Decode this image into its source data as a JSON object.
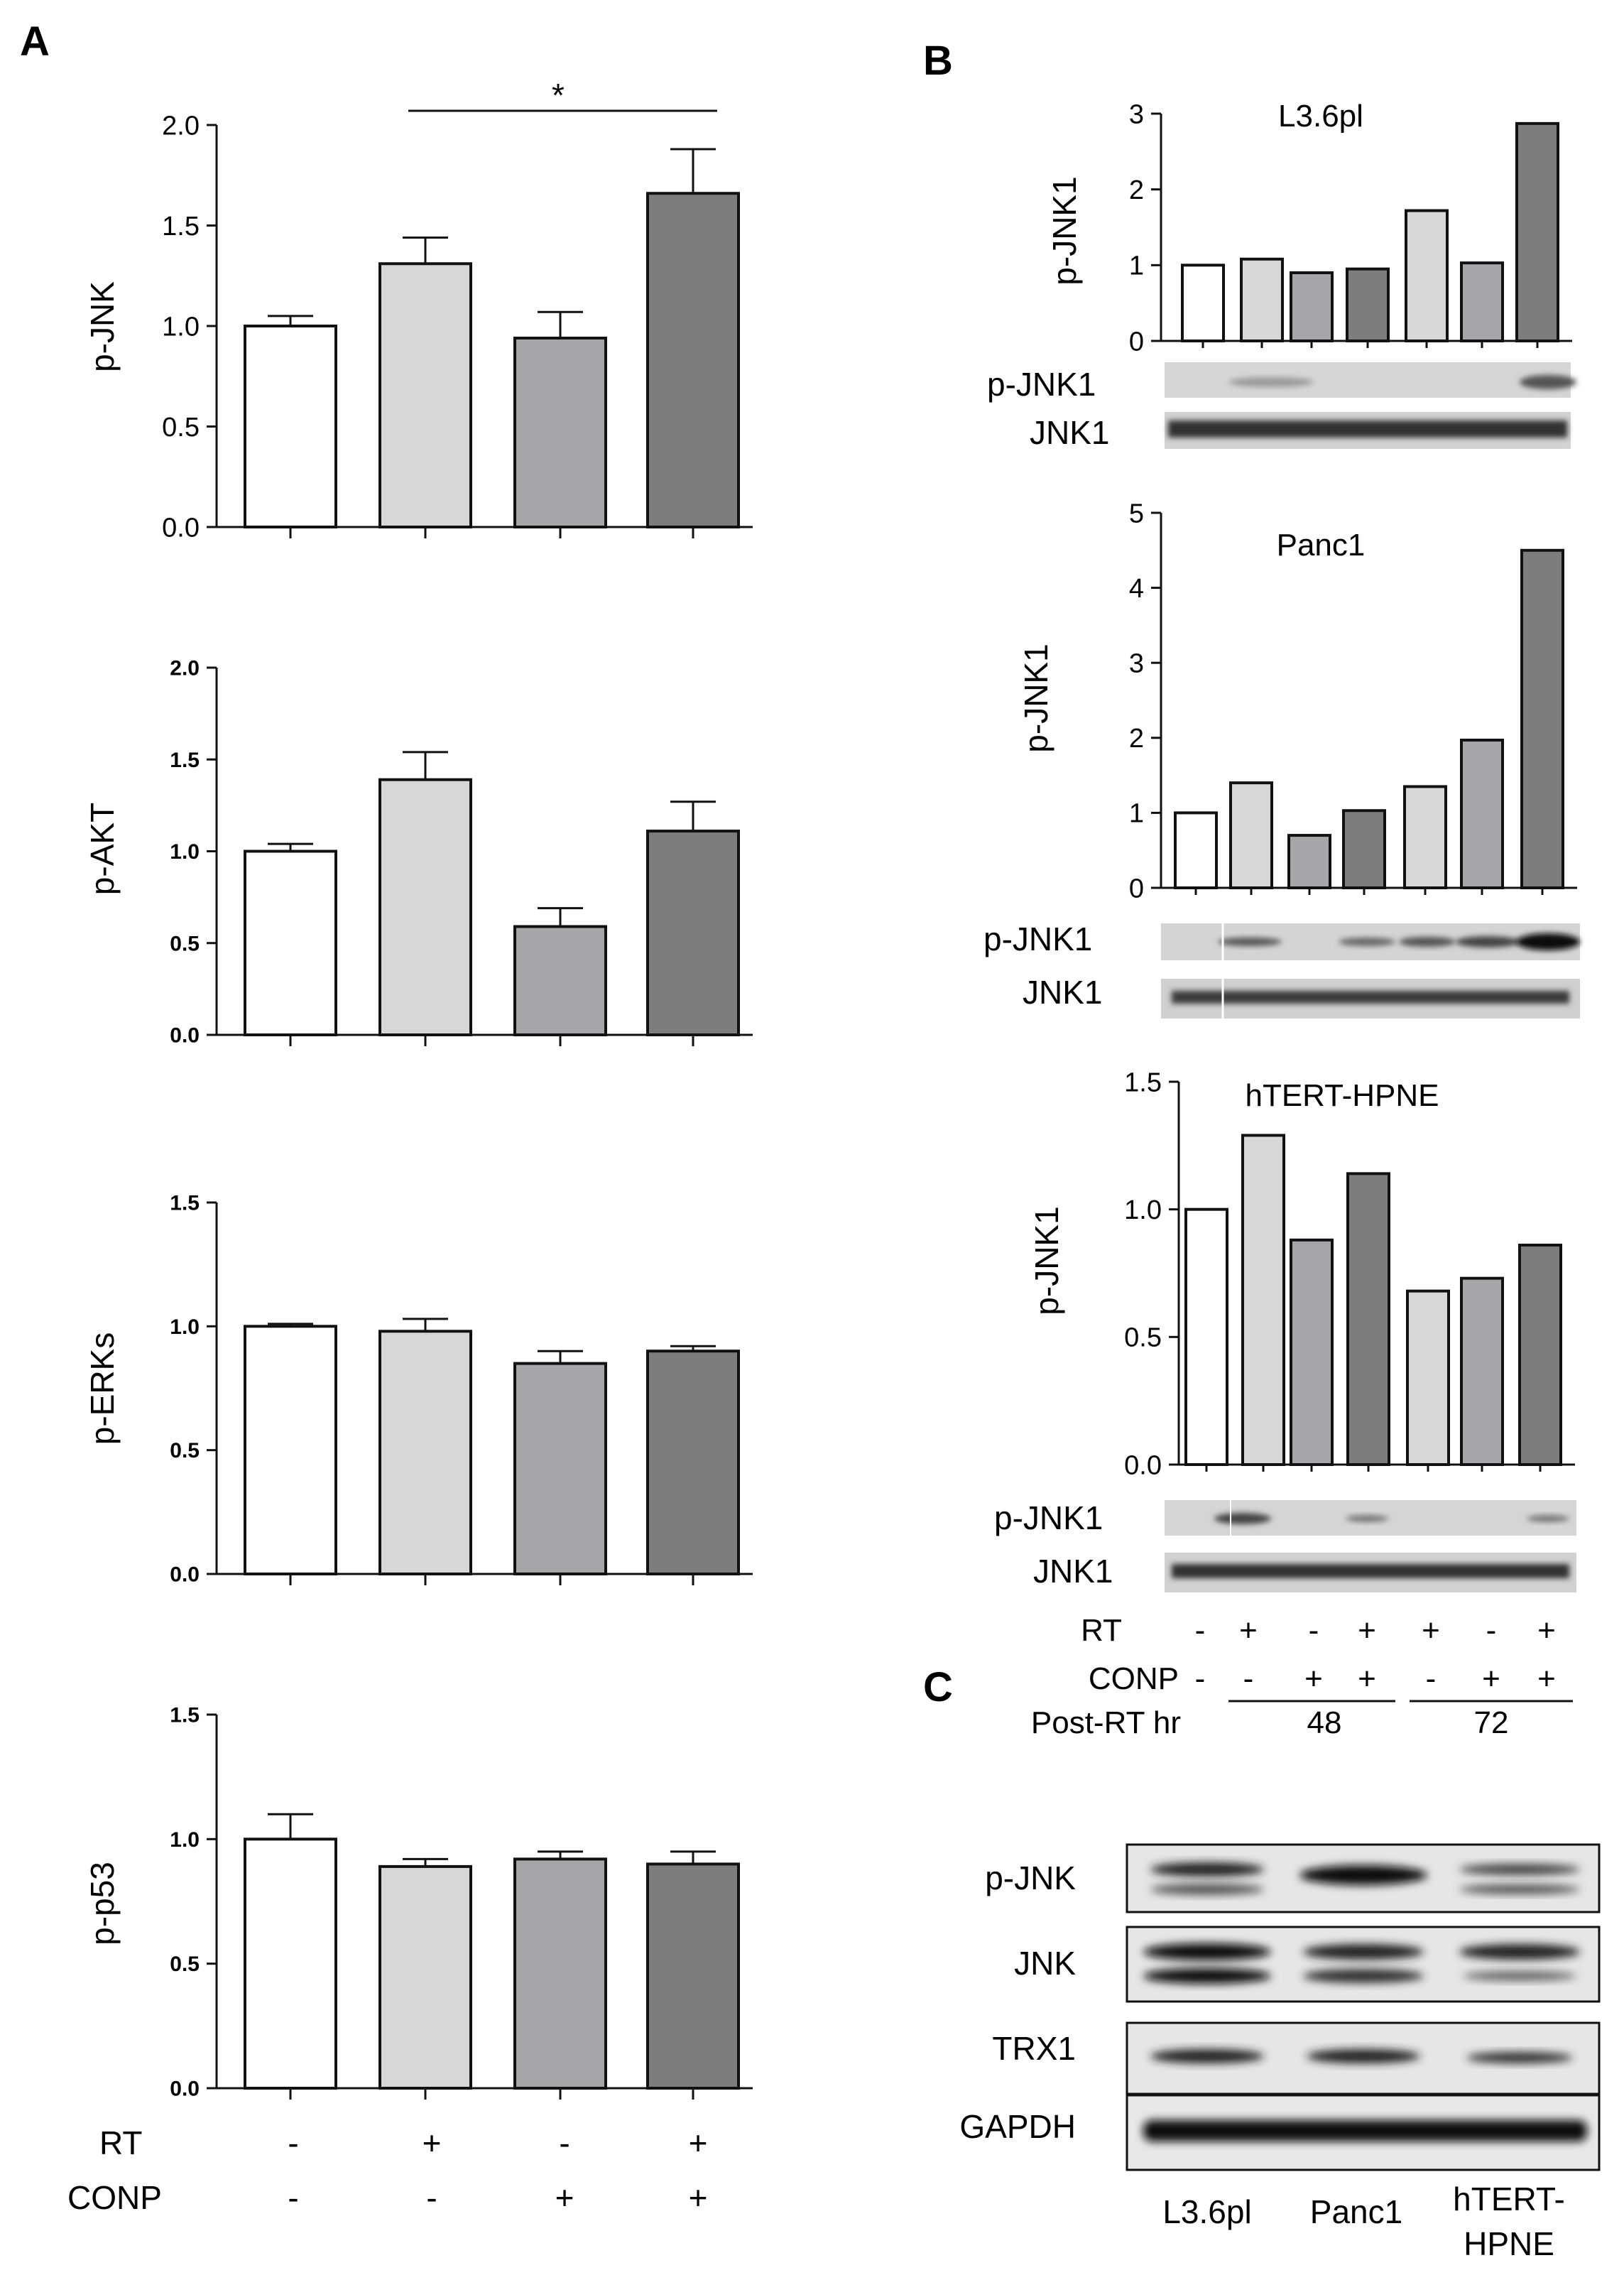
{
  "chart_data": [
    {
      "type": "bar",
      "panel": "A",
      "ylabel": "p-JNK",
      "ylim": [
        0,
        2.0
      ],
      "yticks": [
        "0.0",
        "0.5",
        "1.0",
        "1.5",
        "2.0"
      ],
      "values": [
        1.0,
        1.31,
        0.94,
        1.66
      ],
      "errors": [
        0.05,
        0.13,
        0.13,
        0.22
      ],
      "colors": [
        "#ffffff",
        "#d7d7d7",
        "#a5a5aa",
        "#7d7d7d"
      ],
      "annotation": "*"
    },
    {
      "type": "bar",
      "panel": "A",
      "ylabel": "p-AKT",
      "ylim": [
        0,
        2.0
      ],
      "yticks": [
        "0.0",
        "0.5",
        "1.0",
        "1.5",
        "2.0"
      ],
      "values": [
        1.0,
        1.39,
        0.59,
        1.11
      ],
      "errors": [
        0.04,
        0.15,
        0.1,
        0.16
      ],
      "colors": [
        "#ffffff",
        "#d7d7d7",
        "#a5a5aa",
        "#7d7d7d"
      ]
    },
    {
      "type": "bar",
      "panel": "A",
      "ylabel": "p-ERKs",
      "ylim": [
        0,
        1.5
      ],
      "yticks": [
        "0.0",
        "0.5",
        "1.0",
        "1.5"
      ],
      "values": [
        1.0,
        0.98,
        0.85,
        0.9
      ],
      "errors": [
        0.01,
        0.05,
        0.05,
        0.02
      ],
      "colors": [
        "#ffffff",
        "#d7d7d7",
        "#a5a5aa",
        "#7d7d7d"
      ]
    },
    {
      "type": "bar",
      "panel": "A",
      "ylabel": "p-p53",
      "ylim": [
        0,
        1.5
      ],
      "yticks": [
        "0.0",
        "0.5",
        "1.0",
        "1.5"
      ],
      "values": [
        1.0,
        0.89,
        0.92,
        0.9
      ],
      "errors": [
        0.1,
        0.03,
        0.03,
        0.05
      ],
      "colors": [
        "#ffffff",
        "#d7d7d7",
        "#a5a5aa",
        "#7d7d7d"
      ]
    },
    {
      "type": "bar",
      "panel": "B",
      "title": "L3.6pl",
      "ylabel": "p-JNK1",
      "ylim": [
        0,
        3
      ],
      "yticks": [
        "0",
        "1",
        "2",
        "3"
      ],
      "values": [
        1.0,
        1.08,
        0.9,
        0.95,
        1.72,
        1.03,
        2.87
      ],
      "colors": [
        "#ffffff",
        "#d7d7d7",
        "#a5a5aa",
        "#7d7d7d",
        "#d7d7d7",
        "#a5a5aa",
        "#7d7d7d"
      ]
    },
    {
      "type": "bar",
      "panel": "B",
      "title": "Panc1",
      "ylabel": "p-JNK1",
      "ylim": [
        0,
        5
      ],
      "yticks": [
        "0",
        "1",
        "2",
        "3",
        "4",
        "5"
      ],
      "values": [
        1.0,
        1.4,
        0.7,
        1.03,
        1.35,
        1.97,
        4.5
      ],
      "colors": [
        "#ffffff",
        "#d7d7d7",
        "#a5a5aa",
        "#7d7d7d",
        "#d7d7d7",
        "#a5a5aa",
        "#7d7d7d"
      ]
    },
    {
      "type": "bar",
      "panel": "B",
      "title": "hTERT-HPNE",
      "ylabel": "p-JNK1",
      "ylim": [
        0,
        1.5
      ],
      "yticks": [
        "0.0",
        "0.5",
        "1.0",
        "1.5"
      ],
      "values": [
        1.0,
        1.29,
        0.88,
        1.14,
        0.68,
        0.73,
        0.86
      ],
      "colors": [
        "#ffffff",
        "#d7d7d7",
        "#a5a5aa",
        "#7d7d7d",
        "#d7d7d7",
        "#a5a5aa",
        "#7d7d7d"
      ]
    }
  ],
  "panel_labels": {
    "a": "A",
    "b": "B",
    "c": "C"
  },
  "panel_a_conditions": {
    "rt_label": "RT",
    "conp_label": "CONP",
    "rt": [
      "-",
      "+",
      "-",
      "+"
    ],
    "conp": [
      "-",
      "-",
      "+",
      "+"
    ]
  },
  "panel_b_conditions": {
    "rt_label": "RT",
    "conp_label": "CONP",
    "post_label": "Post-RT hr",
    "rt": [
      "-",
      "+",
      "-",
      "+",
      "+",
      "-",
      "+"
    ],
    "conp": [
      "-",
      "-",
      "+",
      "+",
      "-",
      "+",
      "+"
    ],
    "group_48": "48",
    "group_72": "72"
  },
  "blot_labels": {
    "pjnk1": "p-JNK1",
    "jnk1": "JNK1"
  },
  "panel_c": {
    "rows": [
      "p-JNK",
      "JNK",
      "TRX1",
      "GAPDH"
    ],
    "lanes": [
      "L3.6pl",
      "Panc1",
      "hTERT-",
      "HPNE"
    ]
  }
}
